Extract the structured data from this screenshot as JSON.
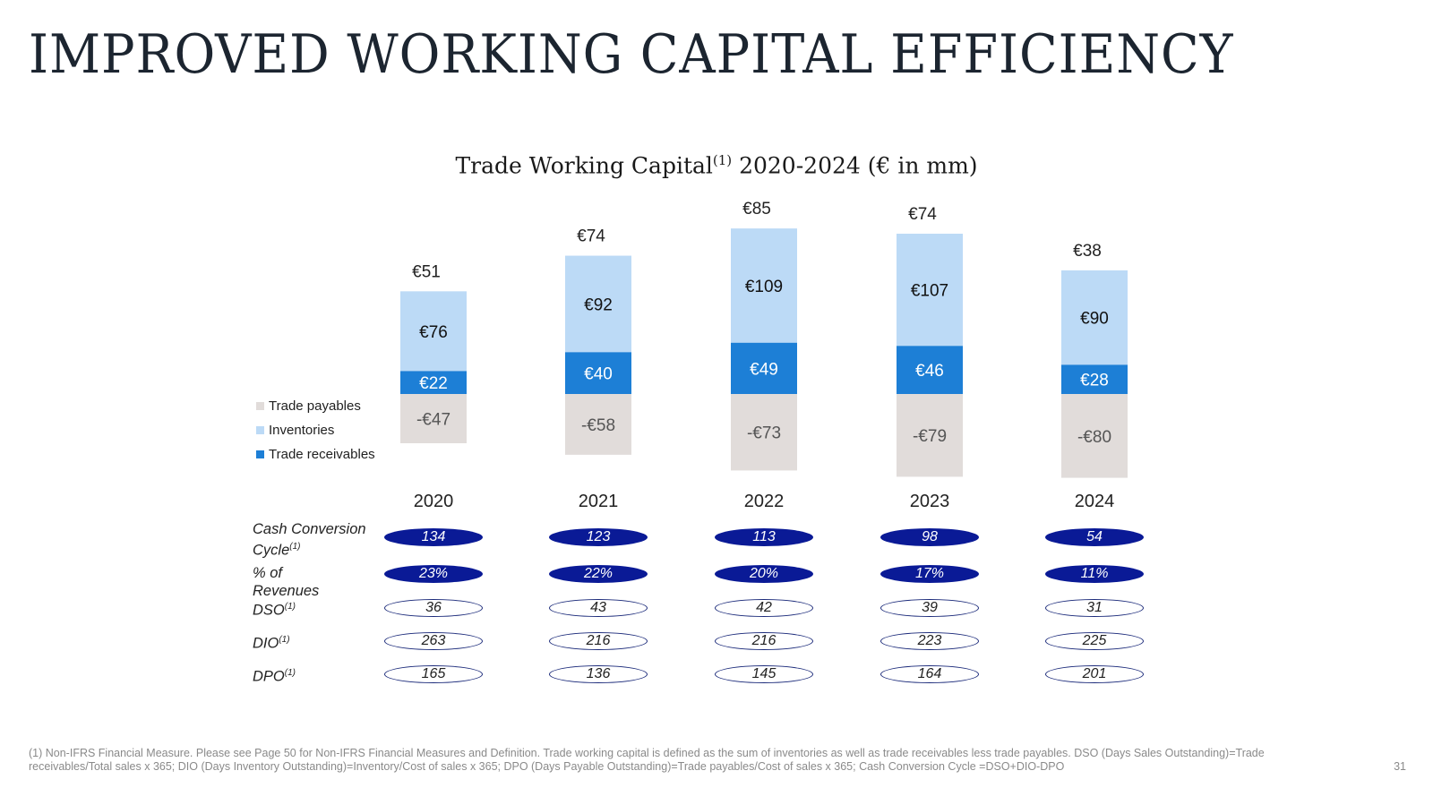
{
  "title": "IMPROVED WORKING CAPITAL EFFICIENCY",
  "chart_data": {
    "type": "bar",
    "stacked": true,
    "title": "Trade Working Capital",
    "title_sup": "(1)",
    "title_suffix": " 2020-2024 (€ in mm)",
    "categories": [
      "2020",
      "2021",
      "2022",
      "2023",
      "2024"
    ],
    "series": [
      {
        "name": "Trade payables",
        "color": "#e1dcda",
        "values": [
          -47,
          -58,
          -73,
          -79,
          -80
        ],
        "labels": [
          "-€47",
          "-€58",
          "-€73",
          "-€79",
          "-€80"
        ]
      },
      {
        "name": "Trade receivables",
        "color": "#1d7fd6",
        "values": [
          22,
          40,
          49,
          46,
          28
        ],
        "labels": [
          "€22",
          "€40",
          "€49",
          "€46",
          "€28"
        ]
      },
      {
        "name": "Inventories",
        "color": "#bcdaf6",
        "values": [
          76,
          92,
          109,
          107,
          90
        ],
        "labels": [
          "€76",
          "€92",
          "€109",
          "€107",
          "€90"
        ]
      }
    ],
    "totals": [
      51,
      74,
      85,
      74,
      38
    ],
    "total_labels": [
      "€51",
      "€74",
      "€85",
      "€74",
      "€38"
    ],
    "legend": [
      {
        "name": "Trade payables",
        "color": "#e1dcda"
      },
      {
        "name": "Inventories",
        "color": "#bcdaf6"
      },
      {
        "name": "Trade receivables",
        "color": "#1d7fd6"
      }
    ]
  },
  "metrics": [
    {
      "label": "Cash Conversion Cycle",
      "sup": "(1)",
      "style": "filled",
      "values": [
        "134",
        "123",
        "113",
        "98",
        "54"
      ]
    },
    {
      "label": "% of Revenues",
      "sup": "",
      "style": "filled",
      "values": [
        "23%",
        "22%",
        "20%",
        "17%",
        "11%"
      ]
    },
    {
      "label": "DSO",
      "sup": "(1)",
      "style": "outline",
      "values": [
        "36",
        "43",
        "42",
        "39",
        "31"
      ]
    },
    {
      "label": "DIO",
      "sup": "(1)",
      "style": "outline",
      "values": [
        "263",
        "216",
        "216",
        "223",
        "225"
      ]
    },
    {
      "label": "DPO",
      "sup": "(1)",
      "style": "outline",
      "values": [
        "165",
        "136",
        "145",
        "164",
        "201"
      ]
    }
  ],
  "footnote": "(1) Non-IFRS Financial Measure. Please see Page 50 for Non-IFRS Financial Measures and Definition. Trade working capital is defined as the sum of inventories as well as trade receivables less trade payables. DSO (Days Sales Outstanding)=Trade receivables/Total sales x 365; DIO (Days Inventory Outstanding)=Inventory/Cost of sales x 365; DPO (Days Payable Outstanding)=Trade payables/Cost of sales x 365; Cash Conversion Cycle =DSO+DIO-DPO",
  "page_number": "31"
}
